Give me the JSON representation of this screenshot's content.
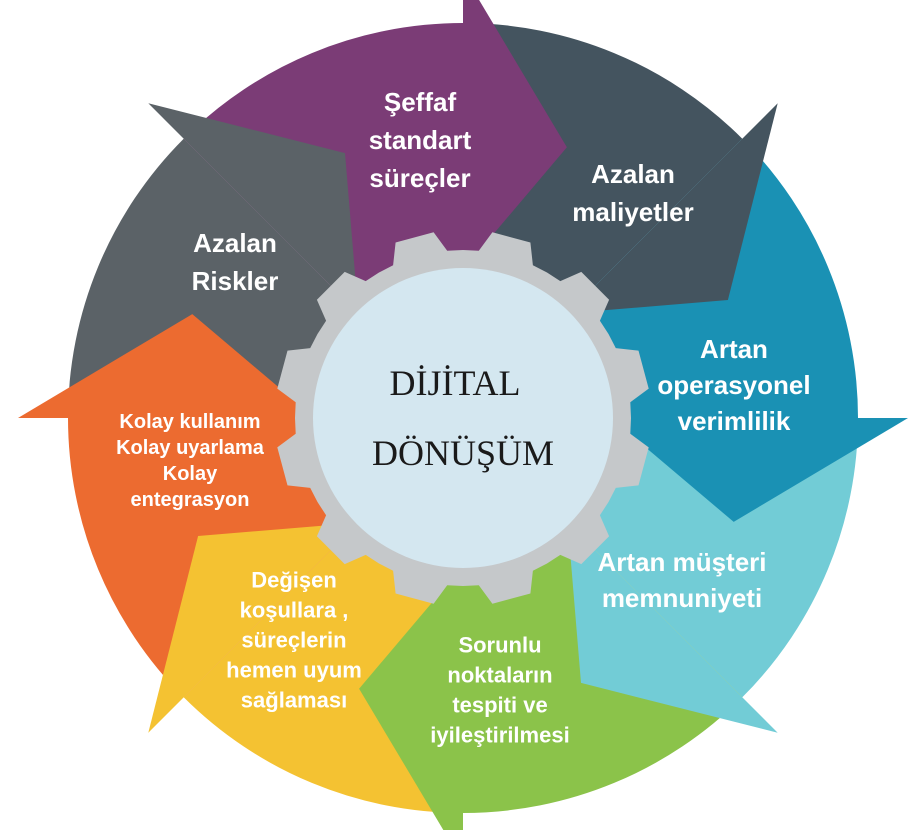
{
  "center": {
    "line1": "DİJİTAL",
    "line2": "DÖNÜŞÜM"
  },
  "segments": [
    {
      "id": "seffaf-standart-surecler",
      "color": "#44545f",
      "lines": [
        "Şeffaf",
        "standart",
        "süreçler"
      ]
    },
    {
      "id": "azalan-maliyetler",
      "color": "#1a91b4",
      "lines": [
        "Azalan",
        "maliyetler"
      ]
    },
    {
      "id": "artan-operasyonel-verimlilik",
      "color": "#72ccd6",
      "lines": [
        "Artan",
        "operasyonel",
        "verimlilik"
      ]
    },
    {
      "id": "artan-musteri-memnuniyeti",
      "color": "#8bc34a",
      "lines": [
        "Artan müşteri",
        "memnuniyeti"
      ]
    },
    {
      "id": "sorunlu-noktalarin-tespiti",
      "color": "#f4c232",
      "lines": [
        "Sorunlu",
        "noktaların",
        "tespiti ve",
        "iyileştirilmesi"
      ]
    },
    {
      "id": "degisen-kosullara",
      "color": "#ec6b30",
      "lines": [
        "Değişen",
        "koşullara ,",
        "süreçlerin",
        "hemen uyum",
        "sağlaması"
      ]
    },
    {
      "id": "kolay-kullanim",
      "color": "#5b6267",
      "lines": [
        "Kolay kullanım",
        "Kolay uyarlama",
        "Kolay",
        "entegrasyon"
      ]
    },
    {
      "id": "azalan-riskler",
      "color": "#7b3c76",
      "lines": [
        "Azalan",
        "Riskler"
      ]
    }
  ],
  "colors": {
    "gear": "#c5c8ca",
    "center_fill": "#d4e7f0"
  }
}
